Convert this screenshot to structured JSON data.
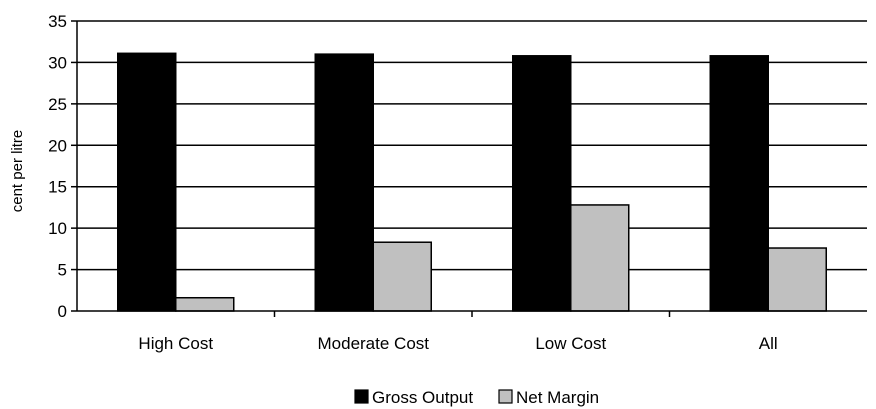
{
  "chart_data": {
    "type": "bar",
    "title": "",
    "xlabel": "",
    "ylabel": "cent per litre",
    "ylim": [
      0,
      35
    ],
    "yticks": [
      0,
      5,
      10,
      15,
      20,
      25,
      30,
      35
    ],
    "grid": true,
    "legend_position": "bottom",
    "categories": [
      "High Cost",
      "Moderate Cost",
      "Low Cost",
      "All"
    ],
    "series": [
      {
        "name": "Gross Output",
        "color": "#000000",
        "values": [
          31.1,
          31.0,
          30.8,
          30.8
        ]
      },
      {
        "name": "Net Margin",
        "color": "#c0c0c0",
        "values": [
          1.6,
          8.3,
          12.8,
          7.6
        ]
      }
    ]
  }
}
